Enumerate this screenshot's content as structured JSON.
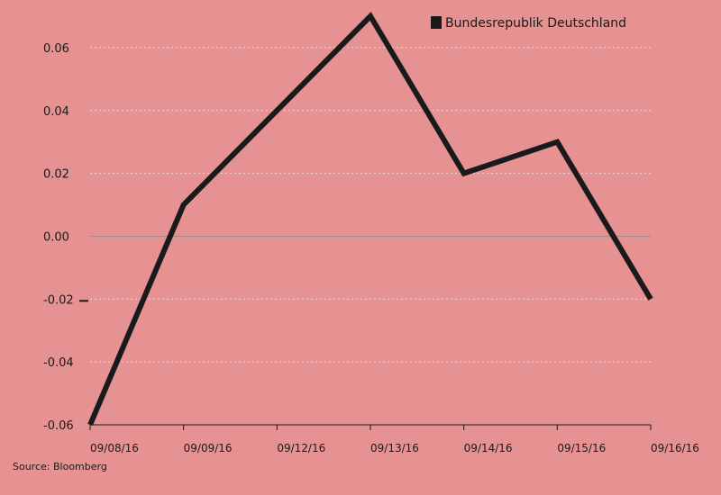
{
  "chart_data": {
    "type": "line",
    "title": "",
    "xlabel": "",
    "ylabel": "",
    "categories": [
      "09/08/16",
      "09/09/16",
      "09/12/16",
      "09/13/16",
      "09/14/16",
      "09/15/16",
      "09/16/16"
    ],
    "series": [
      {
        "name": "Bundesrepublik Deutschland",
        "color": "#1a1a1a",
        "values": [
          -0.06,
          0.01,
          0.04,
          0.07,
          0.02,
          0.03,
          -0.02
        ]
      }
    ],
    "ylim": [
      -0.06,
      0.07
    ],
    "yticks": [
      -0.06,
      -0.04,
      -0.02,
      0.0,
      0.02,
      0.04,
      0.06
    ],
    "ytick_labels": [
      "-0.06",
      "-0.04",
      "-0.02",
      "0.00",
      "0.02",
      "0.04",
      "0.06"
    ],
    "grid": true,
    "legend_position": "top-right",
    "source": "Source: Bloomberg",
    "colors": {
      "background": "#e79292",
      "line": "#1a1a1a",
      "grid": "#f5d5d5",
      "zero_line": "#9a8a8a"
    }
  }
}
